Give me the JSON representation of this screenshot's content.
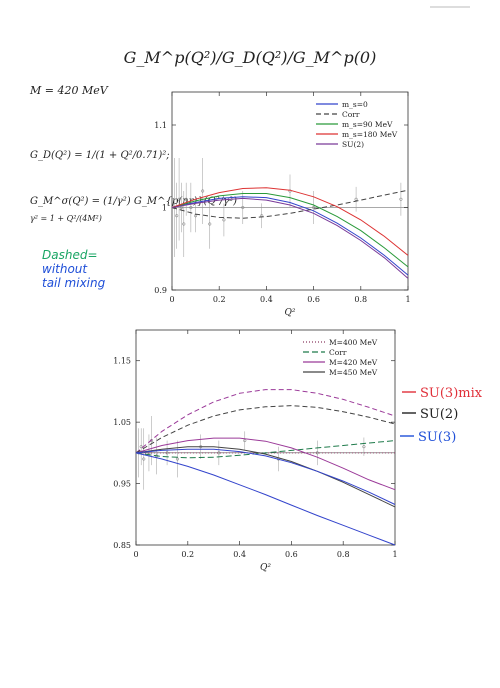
{
  "page": {
    "title": "G_M^p(Q²)/G_D(Q²)/G_M^p(0)",
    "mass_label": "M = 420 MeV",
    "formula_gd": "G_D(Q²) = 1/(1 + Q²/0.71)²;",
    "formula_gm": "G_M^σ(Q²) = (1/γ²) G_M^{p(nr)}(Q²/γ²)",
    "formula_gamma": "γ² = 1 + Q²/(4M²)",
    "note_dashed": "Dashed=",
    "note_without": "without",
    "note_tail": "tail mixing"
  },
  "annotations": [
    {
      "label": "SU(3)mix",
      "color": "#e0303a"
    },
    {
      "label": "SU(2)",
      "color": "#222222"
    },
    {
      "label": "SU(3)",
      "color": "#1f4fd8"
    }
  ],
  "chart_data": [
    {
      "type": "line",
      "xlabel": "Q²",
      "ylabel": "",
      "xlim": [
        0,
        1
      ],
      "ylim": [
        0.9,
        1.14
      ],
      "xticks": [
        0,
        0.2,
        0.4,
        0.6,
        0.8,
        1
      ],
      "xtick_labels": [
        "0",
        "0.2",
        "0.4",
        "0.6",
        "0.8",
        "1"
      ],
      "yticks": [
        0.9,
        1.0,
        1.1
      ],
      "ytick_labels": [
        "0.9",
        "1",
        "1.1"
      ],
      "legend_position": "top-right",
      "grid": false,
      "x": [
        0,
        0.1,
        0.2,
        0.3,
        0.4,
        0.5,
        0.6,
        0.7,
        0.8,
        0.9,
        1.0
      ],
      "series": [
        {
          "name": "m_s=0",
          "color": "#3344cc",
          "dash": "",
          "values": [
            1.0,
            1.006,
            1.011,
            1.013,
            1.012,
            1.006,
            0.996,
            0.981,
            0.963,
            0.942,
            0.918
          ]
        },
        {
          "name": "Corr",
          "color": "#444444",
          "dash": "5,3",
          "values": [
            1.0,
            0.992,
            0.988,
            0.987,
            0.989,
            0.993,
            0.998,
            1.003,
            1.009,
            1.015,
            1.021
          ]
        },
        {
          "name": "m_s=90 MeV",
          "color": "#2a9a3a",
          "dash": "",
          "values": [
            1.0,
            1.008,
            1.014,
            1.017,
            1.017,
            1.012,
            1.003,
            0.989,
            0.972,
            0.951,
            0.928
          ]
        },
        {
          "name": "m_s=180 MeV",
          "color": "#dd3333",
          "dash": "",
          "values": [
            1.0,
            1.01,
            1.018,
            1.023,
            1.024,
            1.021,
            1.013,
            1.001,
            0.985,
            0.965,
            0.942
          ]
        },
        {
          "name": "SU(2)",
          "color": "#7a3a99",
          "dash": "",
          "values": [
            1.0,
            1.005,
            1.009,
            1.011,
            1.009,
            1.003,
            0.993,
            0.978,
            0.96,
            0.939,
            0.914
          ]
        }
      ]
    },
    {
      "type": "line",
      "xlabel": "Q²",
      "ylabel": "",
      "xlim": [
        0,
        1
      ],
      "ylim": [
        0.85,
        1.2
      ],
      "xticks": [
        0,
        0.2,
        0.4,
        0.6,
        0.8,
        1
      ],
      "xtick_labels": [
        "0",
        "0.2",
        "0.4",
        "0.6",
        "0.8",
        "1"
      ],
      "yticks": [
        0.85,
        0.95,
        1.05,
        1.15
      ],
      "ytick_labels": [
        "0.85",
        "0.95",
        "1.05",
        "1.15"
      ],
      "legend_position": "top-right",
      "grid": false,
      "x": [
        0,
        0.1,
        0.2,
        0.3,
        0.4,
        0.5,
        0.6,
        0.7,
        0.8,
        0.9,
        1.0
      ],
      "series": [
        {
          "name": "M=400 MeV",
          "color": "#8b3a62",
          "dash": "1,2",
          "values": [
            1.0,
            1.0,
            1.0,
            1.0,
            1.0,
            1.0,
            1.0,
            1.0,
            1.0,
            1.0,
            1.0
          ]
        },
        {
          "name": "Corr",
          "color": "#1e7a4a",
          "dash": "6,3",
          "values": [
            1.0,
            0.994,
            0.992,
            0.993,
            0.996,
            1.0,
            1.004,
            1.008,
            1.012,
            1.016,
            1.02
          ]
        },
        {
          "name": "M=420 MeV",
          "color": "#9b3a99",
          "dash": "",
          "values": [
            1.0,
            1.012,
            1.02,
            1.024,
            1.024,
            1.019,
            1.008,
            0.993,
            0.975,
            0.956,
            0.94
          ]
        },
        {
          "name": "M=450 MeV",
          "color": "#444444",
          "dash": "",
          "values": [
            1.0,
            1.006,
            1.01,
            1.01,
            1.006,
            0.998,
            0.986,
            0.97,
            0.952,
            0.932,
            0.912
          ]
        }
      ],
      "extra_curves": [
        {
          "color": "#9b3a99",
          "dash": "5,3",
          "values": [
            1.0,
            1.035,
            1.062,
            1.083,
            1.097,
            1.103,
            1.103,
            1.097,
            1.087,
            1.074,
            1.06
          ]
        },
        {
          "color": "#444444",
          "dash": "5,3",
          "values": [
            1.0,
            1.025,
            1.045,
            1.06,
            1.07,
            1.075,
            1.077,
            1.074,
            1.067,
            1.058,
            1.047
          ]
        },
        {
          "color": "#3344cc",
          "dash": "",
          "values": [
            1.0,
            0.99,
            0.978,
            0.964,
            0.948,
            0.932,
            0.915,
            0.898,
            0.882,
            0.866,
            0.85
          ]
        },
        {
          "color": "#3344cc",
          "dash": "",
          "values": [
            1.0,
            1.004,
            1.006,
            1.006,
            1.002,
            0.995,
            0.984,
            0.97,
            0.954,
            0.936,
            0.916
          ]
        }
      ]
    }
  ]
}
